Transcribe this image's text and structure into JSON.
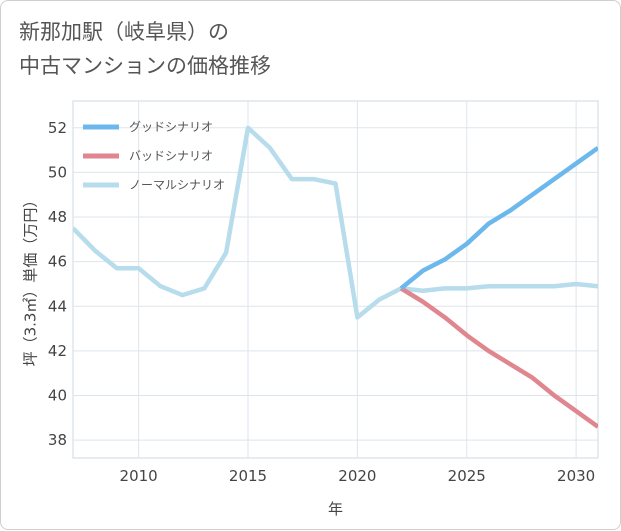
{
  "page": {
    "title_line1": "新那加駅（岐阜県）の",
    "title_line2": "中古マンションの価格推移"
  },
  "chart_data": {
    "type": "line",
    "title": "新那加駅（岐阜県）の中古マンションの価格推移",
    "xlabel": "年",
    "ylabel": "坪（3.3㎡）単価（万円）",
    "xlim": [
      2007,
      2031
    ],
    "ylim": [
      37.2,
      53.2
    ],
    "x_ticks": [
      2010,
      2015,
      2020,
      2025,
      2030
    ],
    "y_ticks": [
      38,
      40,
      42,
      44,
      46,
      48,
      50,
      52
    ],
    "grid": true,
    "legend_position": "top-left",
    "series": [
      {
        "name": "グッドシナリオ",
        "color": "#6cb8ec",
        "x": [
          2022,
          2023,
          2024,
          2025,
          2026,
          2027,
          2028,
          2029,
          2030,
          2031
        ],
        "values": [
          44.8,
          45.6,
          46.1,
          46.8,
          47.7,
          48.3,
          49.0,
          49.7,
          50.4,
          51.1
        ]
      },
      {
        "name": "バッドシナリオ",
        "color": "#e0868f",
        "x": [
          2022,
          2023,
          2024,
          2025,
          2026,
          2027,
          2028,
          2029,
          2030,
          2031
        ],
        "values": [
          44.8,
          44.2,
          43.5,
          42.7,
          42.0,
          41.4,
          40.8,
          40.0,
          39.3,
          38.6
        ]
      },
      {
        "name": "ノーマルシナリオ",
        "color": "#b7dcec",
        "x": [
          2007,
          2008,
          2009,
          2010,
          2011,
          2012,
          2013,
          2014,
          2015,
          2016,
          2017,
          2018,
          2019,
          2020,
          2021,
          2022,
          2023,
          2024,
          2025,
          2026,
          2027,
          2028,
          2029,
          2030,
          2031
        ],
        "values": [
          47.5,
          46.5,
          45.7,
          45.7,
          44.9,
          44.5,
          44.8,
          46.4,
          52.0,
          51.1,
          49.7,
          49.7,
          49.5,
          43.5,
          44.3,
          44.8,
          44.7,
          44.8,
          44.8,
          44.9,
          44.9,
          44.9,
          44.9,
          45.0,
          44.9
        ]
      }
    ]
  }
}
